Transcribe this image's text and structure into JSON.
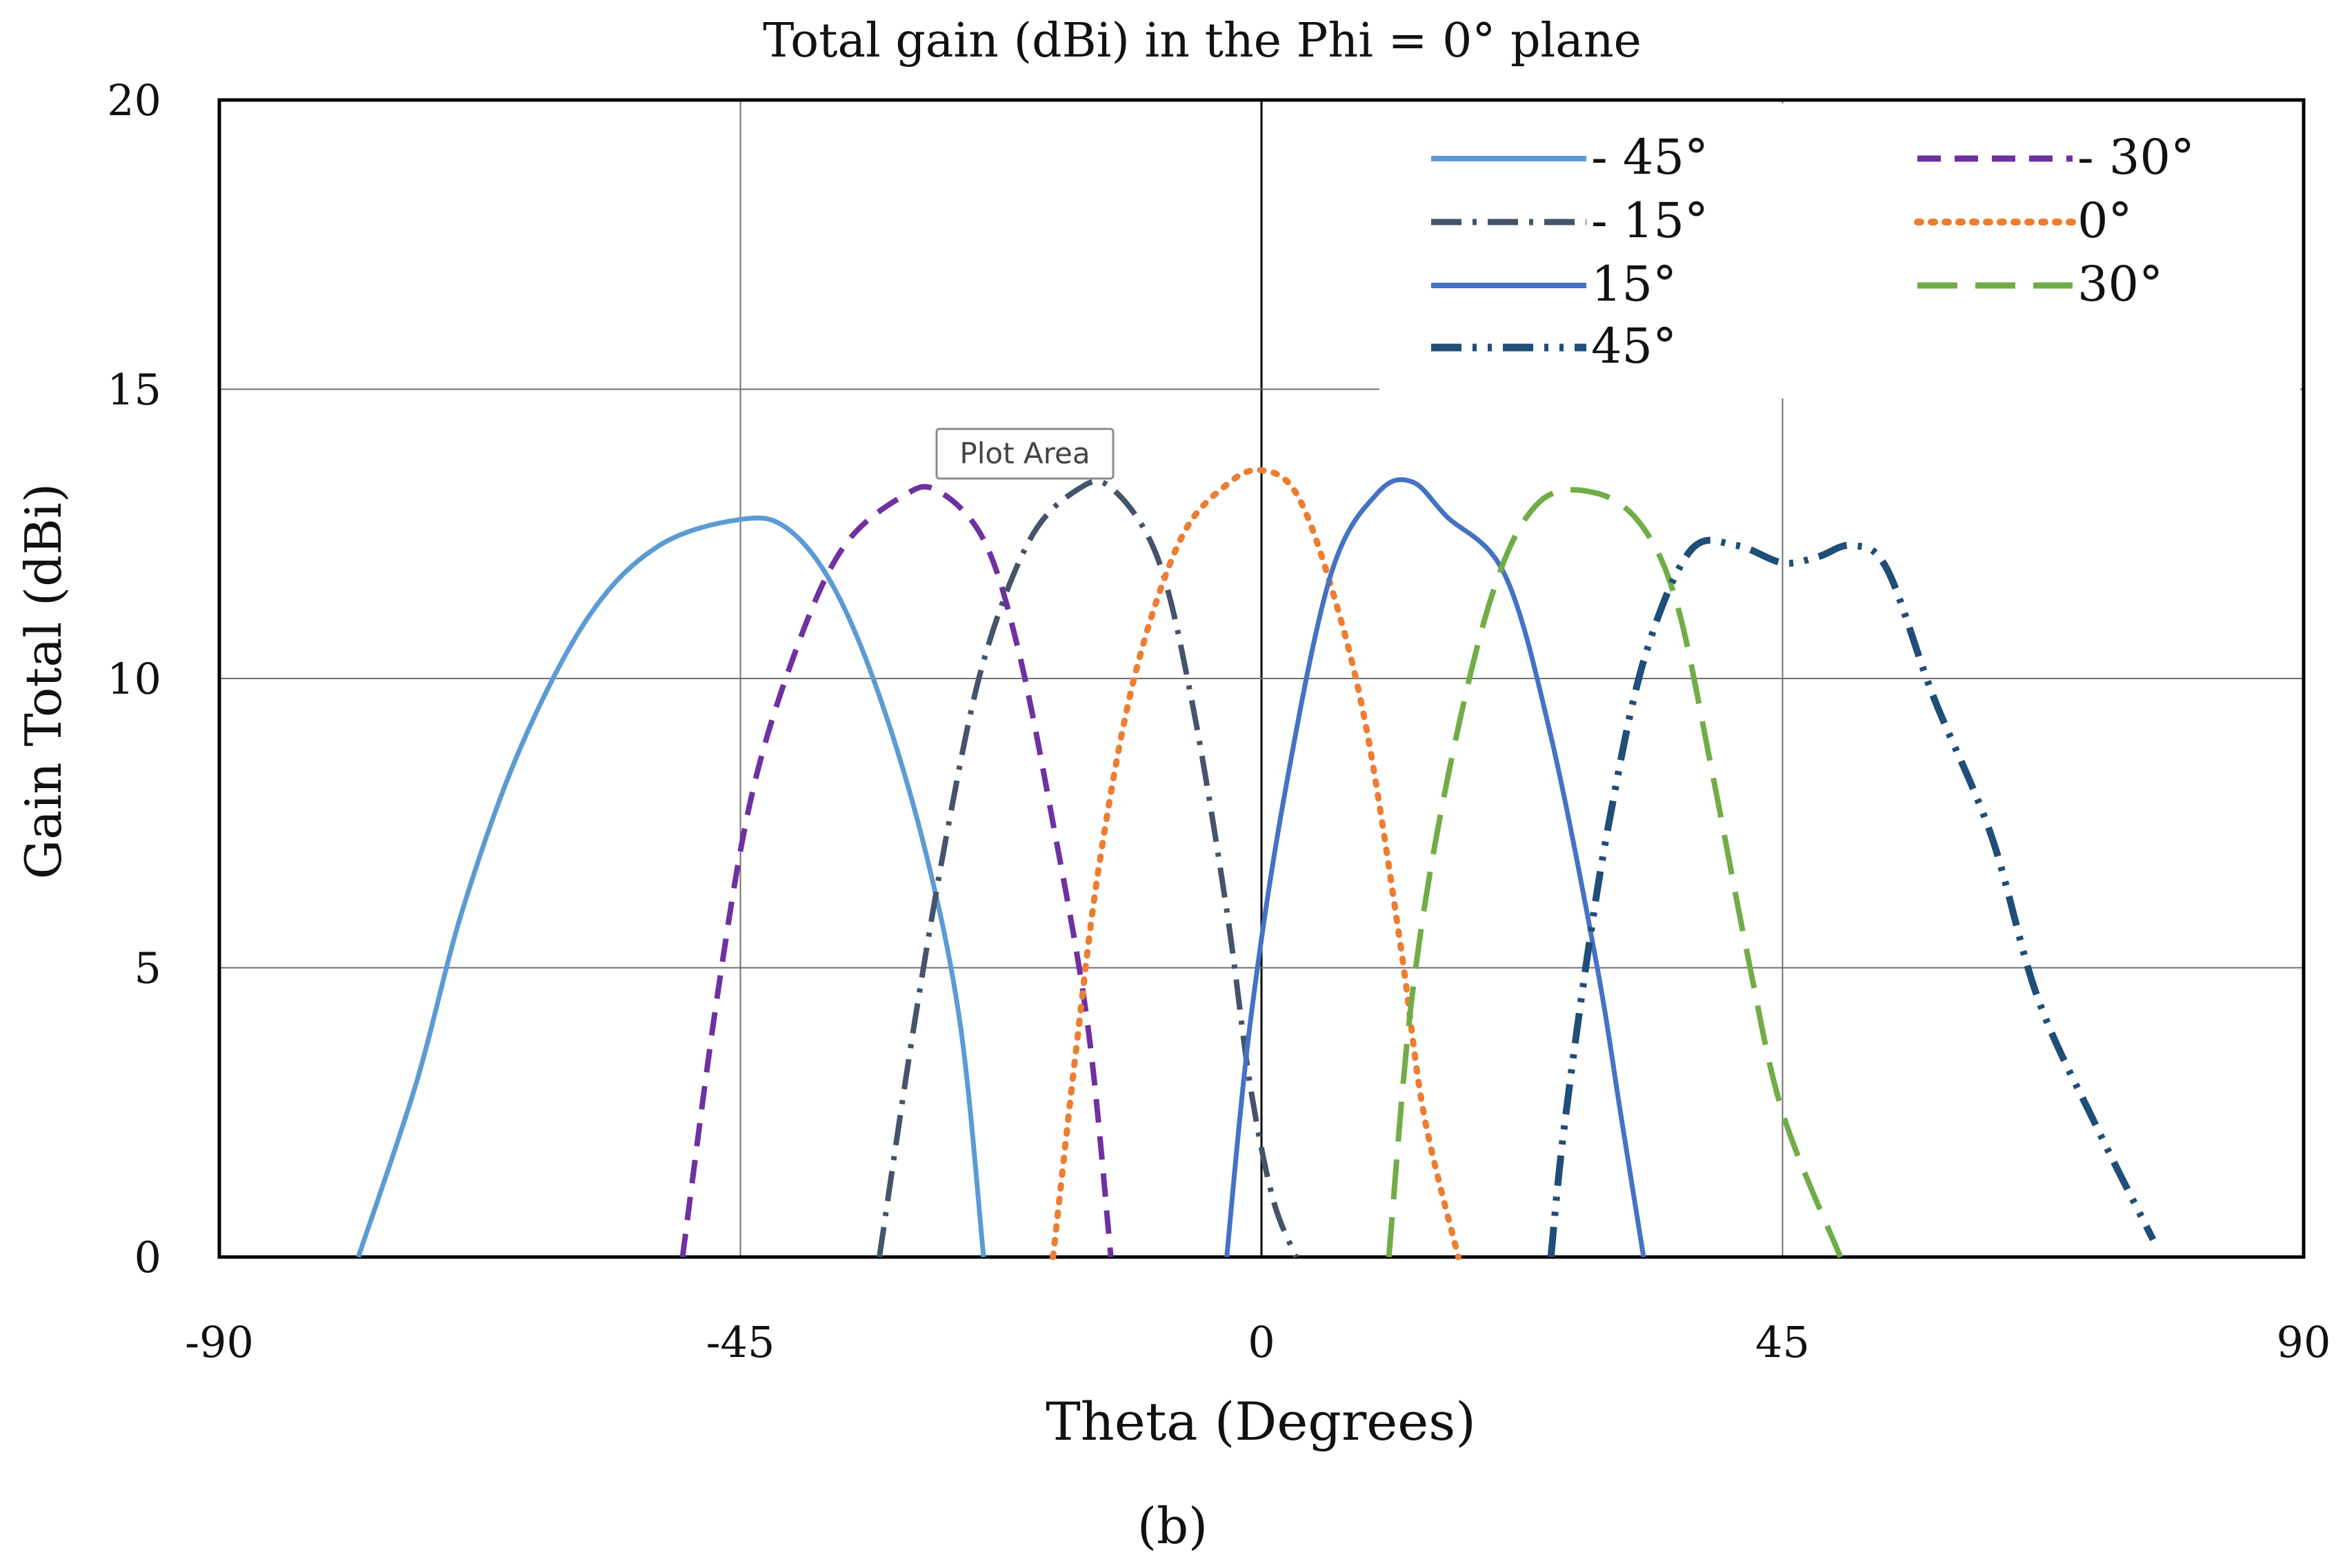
{
  "chart_data": {
    "type": "line",
    "title": "Total gain (dBi) in the Phi = 0° plane",
    "xlabel": "Theta (Degrees)",
    "ylabel": "Gain Total (dBi)",
    "xlim": [
      -90,
      90
    ],
    "ylim": [
      0,
      20
    ],
    "xticks": [
      "-90",
      "-45",
      "0",
      "45",
      "90"
    ],
    "yticks": [
      "0",
      "5",
      "10",
      "15",
      "20"
    ],
    "grid": true,
    "legend_position": "top-right",
    "caption": "(b)",
    "tooltip": "Plot Area",
    "series": [
      {
        "name": "- 45°",
        "color": "#5B9BD5",
        "style": "solid",
        "points": [
          [
            -78,
            0
          ],
          [
            -73,
            3
          ],
          [
            -69,
            6
          ],
          [
            -64,
            8.8
          ],
          [
            -58,
            11.1
          ],
          [
            -52,
            12.3
          ],
          [
            -45,
            12.75
          ],
          [
            -41,
            12.6
          ],
          [
            -37,
            11.6
          ],
          [
            -33,
            9.7
          ],
          [
            -29,
            7
          ],
          [
            -26,
            4
          ],
          [
            -24,
            0
          ]
        ]
      },
      {
        "name": "- 30°",
        "color": "#7030A0",
        "style": "dash",
        "points": [
          [
            -50,
            0
          ],
          [
            -47,
            4.5
          ],
          [
            -44,
            8
          ],
          [
            -40,
            10.6
          ],
          [
            -36,
            12.3
          ],
          [
            -31,
            13.15
          ],
          [
            -28,
            13.25
          ],
          [
            -24,
            12.4
          ],
          [
            -21,
            10.5
          ],
          [
            -18,
            7.5
          ],
          [
            -15,
            4
          ],
          [
            -13,
            0
          ]
        ]
      },
      {
        "name": "- 15°",
        "color": "#44546A",
        "style": "dashdot",
        "points": [
          [
            -33,
            0
          ],
          [
            -30,
            4
          ],
          [
            -27,
            7.5
          ],
          [
            -24,
            10.3
          ],
          [
            -20,
            12.4
          ],
          [
            -16,
            13.25
          ],
          [
            -13,
            13.3
          ],
          [
            -9,
            12.1
          ],
          [
            -6,
            9.6
          ],
          [
            -3,
            6
          ],
          [
            -1,
            3
          ],
          [
            1,
            1
          ],
          [
            3,
            0
          ]
        ]
      },
      {
        "name": "0°",
        "color": "#ED7D31",
        "style": "dot",
        "points": [
          [
            -18,
            0
          ],
          [
            -16,
            3.6
          ],
          [
            -14,
            6.8
          ],
          [
            -11,
            10
          ],
          [
            -7,
            12.4
          ],
          [
            -3,
            13.35
          ],
          [
            0,
            13.6
          ],
          [
            3,
            13.2
          ],
          [
            6,
            11.6
          ],
          [
            9,
            9.2
          ],
          [
            12,
            5.4
          ],
          [
            14,
            2.5
          ],
          [
            17,
            0
          ]
        ]
      },
      {
        "name": "15°",
        "color": "#4472C4",
        "style": "solid",
        "points": [
          [
            -3,
            0
          ],
          [
            -1,
            4
          ],
          [
            2,
            8
          ],
          [
            6,
            11.8
          ],
          [
            10,
            13.2
          ],
          [
            13,
            13.4
          ],
          [
            16,
            12.8
          ],
          [
            21,
            11.8
          ],
          [
            25,
            9
          ],
          [
            29,
            5
          ],
          [
            31,
            2.5
          ],
          [
            33,
            0
          ]
        ]
      },
      {
        "name": "30°",
        "color": "#70AD47",
        "style": "longdash",
        "points": [
          [
            11,
            0
          ],
          [
            13,
            4.5
          ],
          [
            16,
            8.2
          ],
          [
            20,
            11.5
          ],
          [
            24,
            13.05
          ],
          [
            29,
            13.2
          ],
          [
            33,
            12.6
          ],
          [
            36,
            11.2
          ],
          [
            39,
            8.3
          ],
          [
            42,
            5.2
          ],
          [
            45,
            2.5
          ],
          [
            50,
            0
          ]
        ]
      },
      {
        "name": "45°",
        "color": "#1F4E79",
        "style": "dashdotdot",
        "points": [
          [
            25,
            0
          ],
          [
            26,
            2
          ],
          [
            28,
            5
          ],
          [
            30,
            7.5
          ],
          [
            33,
            10.3
          ],
          [
            37,
            12.2
          ],
          [
            41,
            12.3
          ],
          [
            45,
            12
          ],
          [
            48,
            12.1
          ],
          [
            51,
            12.3
          ],
          [
            54,
            11.9
          ],
          [
            58,
            9.7
          ],
          [
            63,
            7.3
          ],
          [
            67,
            4.5
          ],
          [
            72,
            2.3
          ],
          [
            77,
            0.3
          ]
        ]
      }
    ]
  }
}
